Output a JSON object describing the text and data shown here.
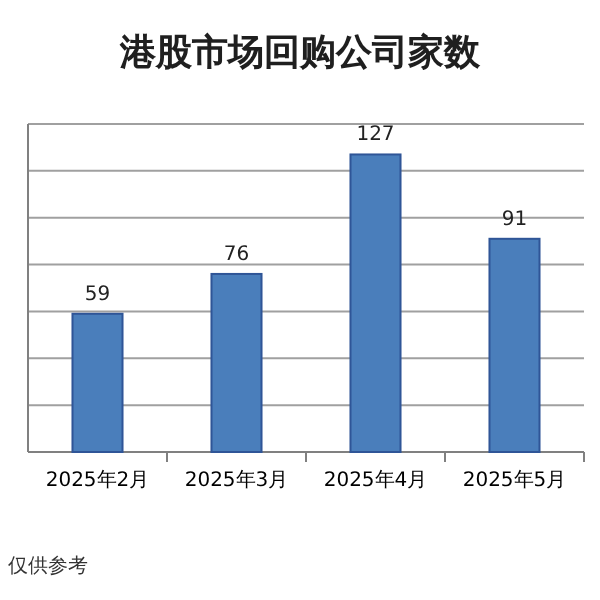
{
  "chart_data": {
    "type": "bar",
    "title": "港股市场回购公司家数",
    "categories": [
      "2025年2月",
      "2025年3月",
      "2025年4月",
      "2025年5月"
    ],
    "values": [
      59,
      76,
      127,
      91
    ],
    "color": "#4a7ebb",
    "data_labels": true,
    "ylim": [
      0,
      140
    ],
    "yticks": [
      0,
      20,
      40,
      60,
      80,
      100,
      120,
      140
    ],
    "grid": "y",
    "tick_labels": "x",
    "annotations": [
      "仅供参考"
    ]
  }
}
